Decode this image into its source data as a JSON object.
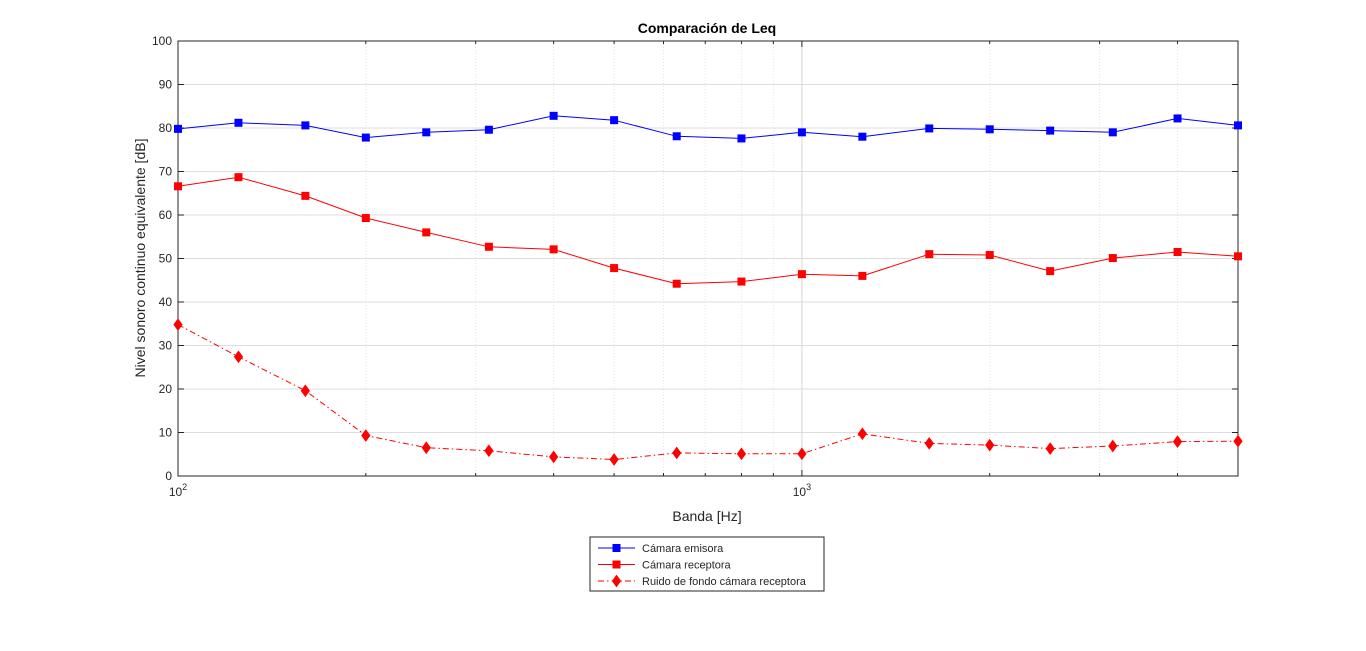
{
  "chart_data": {
    "type": "line",
    "title": "Comparación de Leq",
    "xlabel": "Banda [Hz]",
    "ylabel": "Nivel sonoro continuo equivalente [dB]",
    "xscale": "log",
    "xlim": [
      100,
      5000
    ],
    "ylim": [
      0,
      100
    ],
    "yticks": [
      0,
      10,
      20,
      30,
      40,
      50,
      60,
      70,
      80,
      90,
      100
    ],
    "xtick_labels": [
      {
        "base": "10",
        "exp": "2",
        "value": 100
      },
      {
        "base": "10",
        "exp": "3",
        "value": 1000
      }
    ],
    "grid": true,
    "legend_position": "bottom",
    "x": [
      100,
      125,
      160,
      200,
      250,
      315,
      400,
      500,
      630,
      800,
      1000,
      1250,
      1600,
      2000,
      2500,
      3150,
      4000,
      5000
    ],
    "series": [
      {
        "name": "Cámara emisora",
        "color": "#0000ff",
        "line": "solid",
        "marker": "square",
        "values": [
          79.8,
          81.2,
          80.6,
          77.8,
          79.0,
          79.6,
          82.8,
          81.8,
          78.1,
          77.6,
          79.0,
          78.0,
          79.9,
          79.7,
          79.4,
          79.0,
          82.2,
          80.6
        ]
      },
      {
        "name": "Cámara receptora",
        "color": "#ff0000",
        "line": "solid",
        "marker": "square",
        "values": [
          66.6,
          68.7,
          64.4,
          59.3,
          56.0,
          52.7,
          52.1,
          47.8,
          44.2,
          44.7,
          46.4,
          46.0,
          51.0,
          50.8,
          47.1,
          50.1,
          51.5,
          50.5
        ]
      },
      {
        "name": "Ruido de fondo cámara receptora",
        "color": "#ff0000",
        "line": "dashdot",
        "marker": "diamond",
        "values": [
          34.8,
          27.4,
          19.6,
          9.3,
          6.5,
          5.8,
          4.4,
          3.8,
          5.3,
          5.1,
          5.1,
          9.7,
          7.5,
          7.1,
          6.3,
          6.9,
          7.9,
          8.0
        ]
      }
    ]
  }
}
